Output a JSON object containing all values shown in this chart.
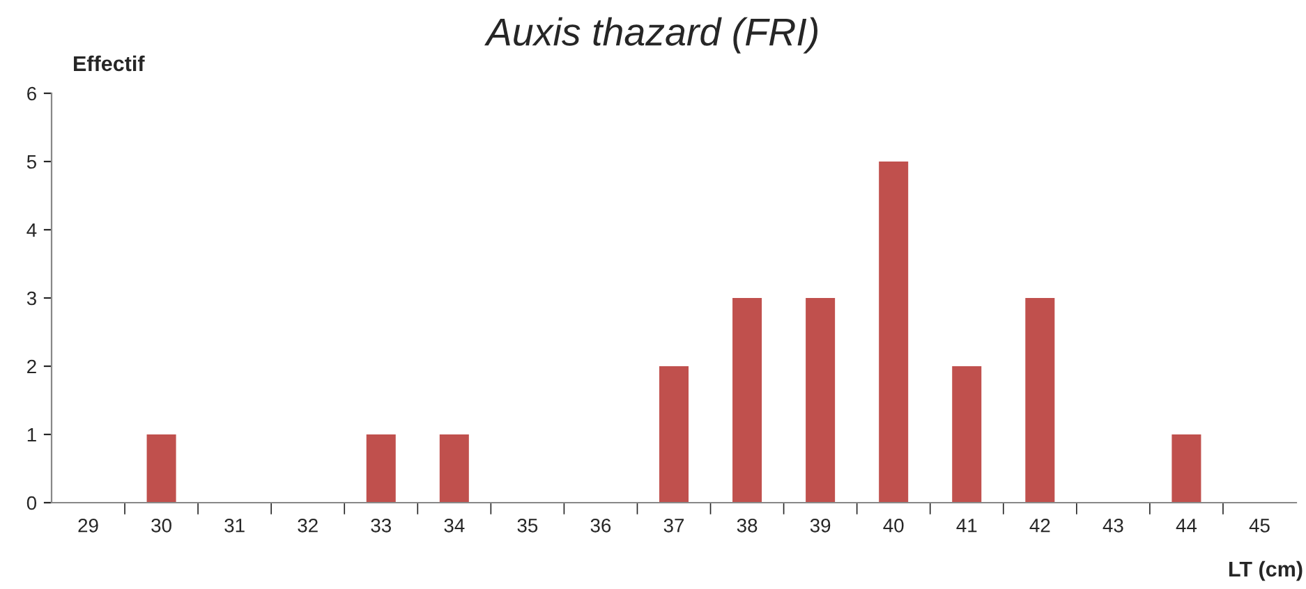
{
  "chart_data": {
    "type": "bar",
    "title": "Auxis thazard (FRI)",
    "xlabel": "LT (cm)",
    "ylabel": "Effectif",
    "categories": [
      "29",
      "30",
      "31",
      "32",
      "33",
      "34",
      "35",
      "36",
      "37",
      "38",
      "39",
      "40",
      "41",
      "42",
      "43",
      "44",
      "45"
    ],
    "values": [
      0,
      1,
      0,
      0,
      1,
      1,
      0,
      0,
      2,
      3,
      3,
      5,
      2,
      3,
      0,
      1,
      0
    ],
    "color": "#c0504d",
    "ylim": [
      0,
      6
    ],
    "yticks": [
      0,
      1,
      2,
      3,
      4,
      5,
      6
    ],
    "grid": false,
    "legend": false
  }
}
